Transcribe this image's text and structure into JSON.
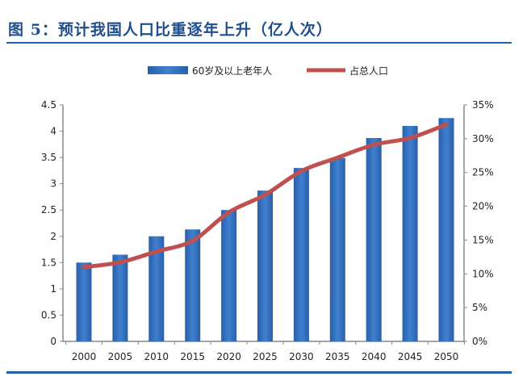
{
  "title": "图 5：预计我国人口比重逐年上升（亿人次）",
  "chart_data": {
    "type": "bar+line",
    "title": "图 5：预计我国人口比重逐年上升（亿人次）",
    "categories": [
      "2000",
      "2005",
      "2010",
      "2015",
      "2020",
      "2025",
      "2030",
      "2035",
      "2040",
      "2045",
      "2050"
    ],
    "series": [
      {
        "name": "60岁及以上老年人",
        "type": "bar",
        "axis": "left",
        "color": "#2e6bbf",
        "values": [
          1.5,
          1.65,
          2.0,
          2.13,
          2.5,
          2.87,
          3.3,
          3.49,
          3.87,
          4.1,
          4.25
        ]
      },
      {
        "name": "占总人口",
        "type": "line",
        "axis": "right",
        "color": "#c0504d",
        "values": [
          11.0,
          11.7,
          13.3,
          14.9,
          19.1,
          21.7,
          25.2,
          27.2,
          29.1,
          30.1,
          32.1
        ]
      }
    ],
    "y_left": {
      "range": [
        0,
        4.5
      ],
      "ticks": [
        "0",
        "0.5",
        "1",
        "1.5",
        "2",
        "2.5",
        "3",
        "3.5",
        "4",
        "4.5"
      ]
    },
    "y_right": {
      "range": [
        0,
        35
      ],
      "ticks": [
        "0%",
        "5%",
        "10%",
        "15%",
        "20%",
        "25%",
        "30%",
        "35%"
      ]
    },
    "legend": "top",
    "grid": false
  }
}
